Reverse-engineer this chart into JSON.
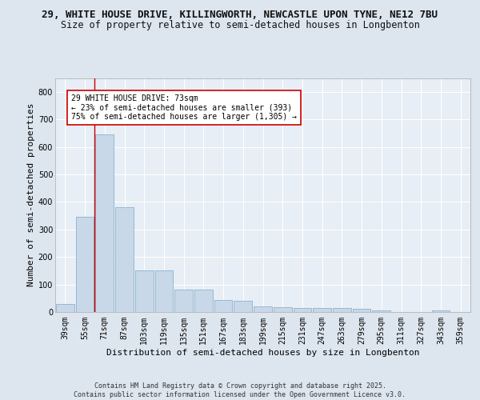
{
  "title_line1": "29, WHITE HOUSE DRIVE, KILLINGWORTH, NEWCASTLE UPON TYNE, NE12 7BU",
  "title_line2": "Size of property relative to semi-detached houses in Longbenton",
  "xlabel": "Distribution of semi-detached houses by size in Longbenton",
  "ylabel": "Number of semi-detached properties",
  "categories": [
    "39sqm",
    "55sqm",
    "71sqm",
    "87sqm",
    "103sqm",
    "119sqm",
    "135sqm",
    "151sqm",
    "167sqm",
    "183sqm",
    "199sqm",
    "215sqm",
    "231sqm",
    "247sqm",
    "263sqm",
    "279sqm",
    "295sqm",
    "311sqm",
    "327sqm",
    "343sqm",
    "359sqm"
  ],
  "values": [
    30,
    345,
    645,
    380,
    150,
    150,
    80,
    80,
    45,
    40,
    20,
    18,
    15,
    14,
    14,
    12,
    5,
    0,
    0,
    5,
    0
  ],
  "bar_color": "#c8d8e8",
  "bar_edge_color": "#7aa8c8",
  "highlight_index": 2,
  "highlight_line_color": "#cc0000",
  "annotation_text": "29 WHITE HOUSE DRIVE: 73sqm\n← 23% of semi-detached houses are smaller (393)\n75% of semi-detached houses are larger (1,305) →",
  "annotation_box_color": "#ffffff",
  "annotation_box_edge_color": "#cc0000",
  "background_color": "#dde5ee",
  "plot_background_color": "#e8eef5",
  "grid_color": "#ffffff",
  "ylim": [
    0,
    850
  ],
  "yticks": [
    0,
    100,
    200,
    300,
    400,
    500,
    600,
    700,
    800
  ],
  "footer_text": "Contains HM Land Registry data © Crown copyright and database right 2025.\nContains public sector information licensed under the Open Government Licence v3.0.",
  "title_fontsize": 9,
  "subtitle_fontsize": 8.5,
  "axis_label_fontsize": 8,
  "tick_fontsize": 7,
  "annotation_fontsize": 7,
  "footer_fontsize": 6
}
